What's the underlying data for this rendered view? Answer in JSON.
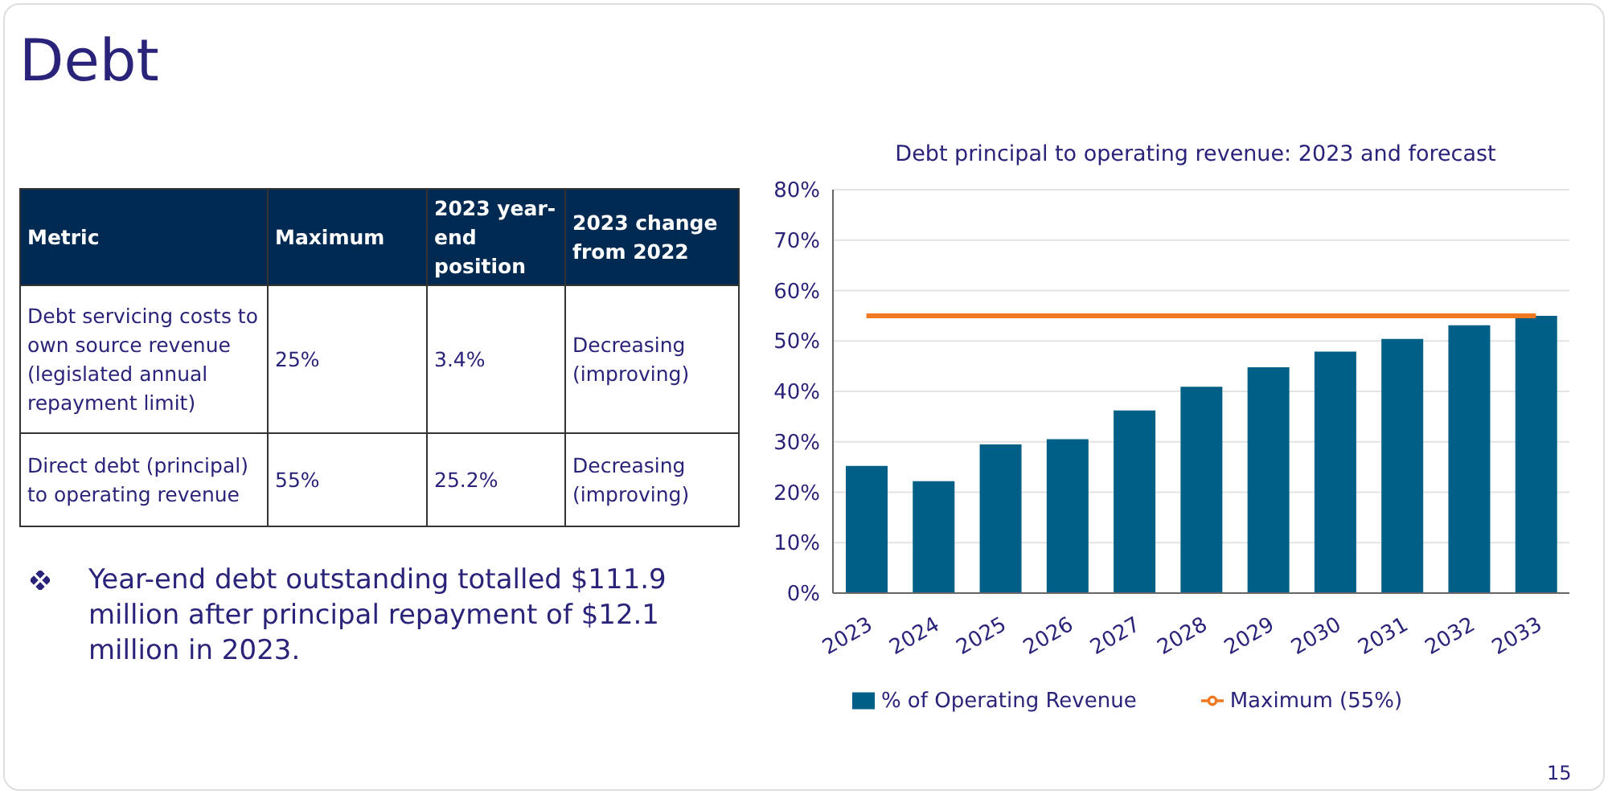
{
  "chart_data": [
    {
      "type": "other",
      "title": "Debt",
      "annotations": [
        "Metric",
        "Maximum",
        "2023 year-end position",
        "2023 change from 2022",
        "Debt servicing costs to own source revenue (legislated annual repayment limit)",
        "25%",
        "3.4%",
        "Decreasing (improving)",
        "Direct debt (principal) to operating revenue",
        "55%",
        "25.2%",
        "Decreasing (improving)",
        "Year-end debt outstanding totalled $111.9 million after principal repayment of $12.1 million in 2023.",
        "15"
      ]
    },
    {
      "type": "bar",
      "title": "Debt principal to operating revenue: 2023 and forecast",
      "categories": [
        "2023",
        "2024",
        "2025",
        "2026",
        "2027",
        "2028",
        "2029",
        "2030",
        "2031",
        "2032",
        "2033"
      ],
      "series": [
        {
          "name": "% of Operating Revenue",
          "color": "#005f87",
          "values": [
            25.2,
            22.2,
            29.5,
            30.5,
            36.2,
            40.9,
            44.8,
            47.9,
            50.4,
            53.1,
            55.0
          ]
        },
        {
          "name": "Maximum (55%)",
          "type": "line",
          "color": "#f07820",
          "values": [
            55,
            55,
            55,
            55,
            55,
            55,
            55,
            55,
            55,
            55,
            55
          ]
        }
      ],
      "ylim": [
        0,
        80
      ],
      "yticks": [
        {
          "value": 0,
          "label": "0%"
        },
        {
          "value": 10,
          "label": "10%"
        },
        {
          "value": 20,
          "label": "20%"
        },
        {
          "value": 30,
          "label": "30%"
        },
        {
          "value": 40,
          "label": "40%"
        },
        {
          "value": 50,
          "label": "50%"
        },
        {
          "value": 60,
          "label": "60%"
        },
        {
          "value": 70,
          "label": "70%"
        },
        {
          "value": 80,
          "label": "80%"
        }
      ],
      "grid": "y",
      "legend": "bottom",
      "marker": "none",
      "line_style": "solid"
    }
  ]
}
